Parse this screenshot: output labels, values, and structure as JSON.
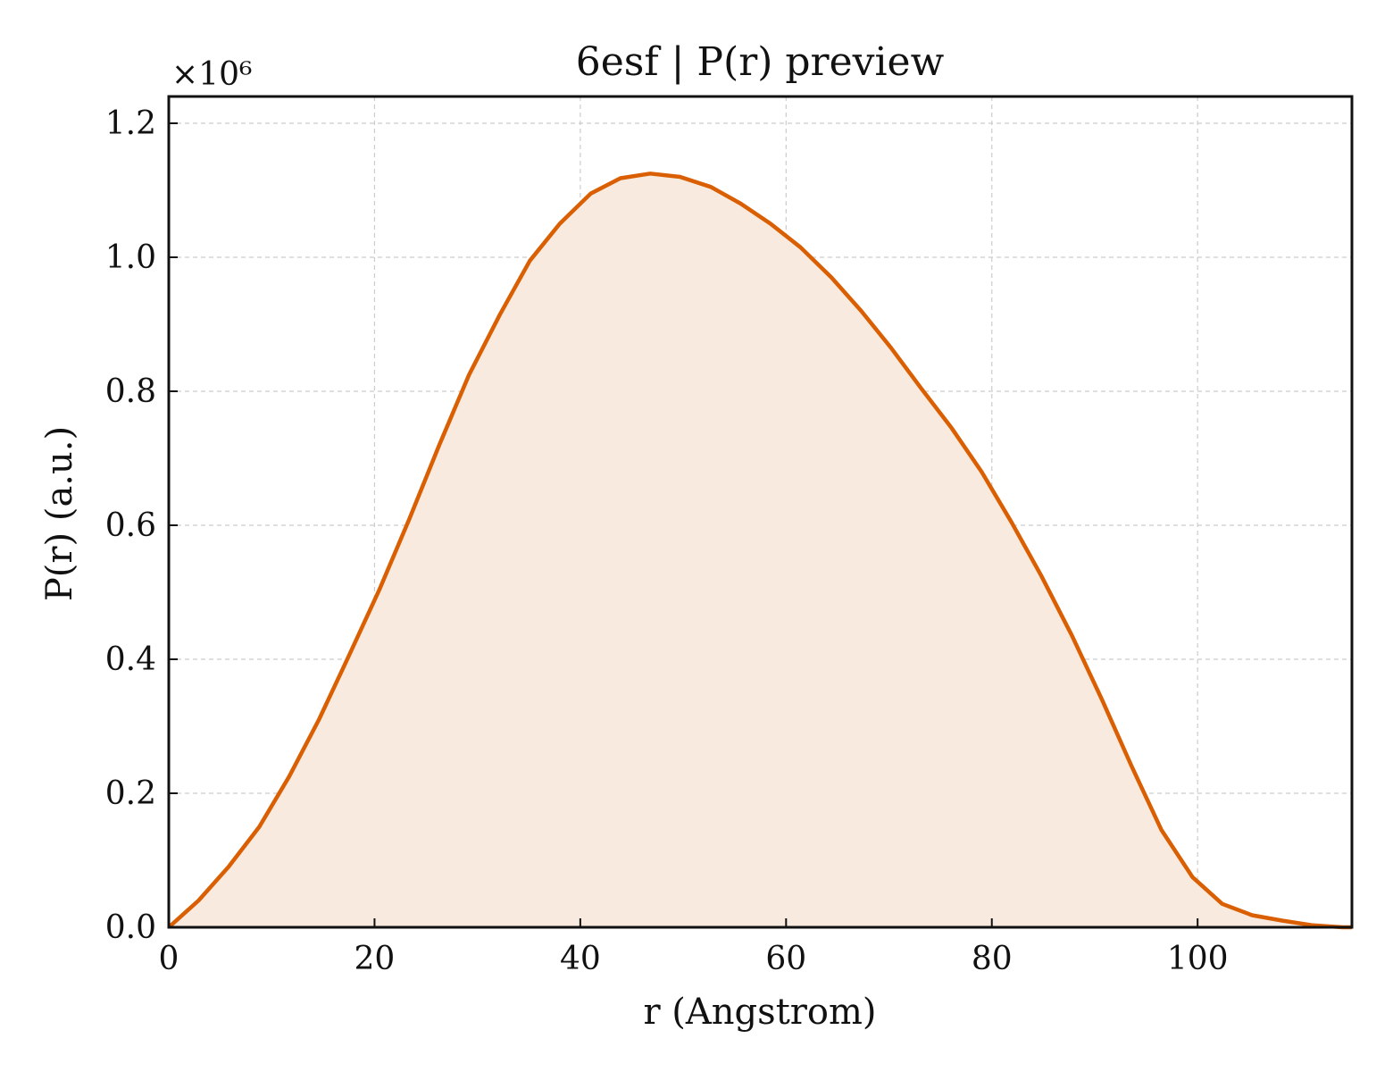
{
  "chart_data": {
    "type": "area",
    "title": "6esf | P(r) preview",
    "xlabel": "r (Angstrom)",
    "ylabel": "P(r) (a.u.)",
    "y_offset_text": "×10⁶",
    "xlim": [
      0,
      115
    ],
    "ylim": [
      0,
      1.24
    ],
    "x_ticks": [
      0,
      20,
      40,
      60,
      80,
      100
    ],
    "x_tick_labels": [
      "0",
      "20",
      "40",
      "60",
      "80",
      "100"
    ],
    "y_ticks": [
      0.0,
      0.2,
      0.4,
      0.6,
      0.8,
      1.0,
      1.2
    ],
    "y_tick_labels": [
      "0.0",
      "0.2",
      "0.4",
      "0.6",
      "0.8",
      "1.0",
      "1.2"
    ],
    "grid": true,
    "line_color": "#d95f02",
    "fill_color": "#f8eadf",
    "series": [
      {
        "x": [
          0,
          2.9,
          5.8,
          8.8,
          11.7,
          14.6,
          17.5,
          20.5,
          23.4,
          26.3,
          29.2,
          32.2,
          35.1,
          38.0,
          41.0,
          43.9,
          46.8,
          49.7,
          52.7,
          55.6,
          58.5,
          61.4,
          64.4,
          67.3,
          70.2,
          73.1,
          76.1,
          79.0,
          81.9,
          84.8,
          87.8,
          90.7,
          93.6,
          96.5,
          99.5,
          102.4,
          105.3,
          108.2,
          111.2,
          114.1,
          115
        ],
        "y": [
          0.0,
          0.04,
          0.09,
          0.15,
          0.225,
          0.31,
          0.405,
          0.505,
          0.61,
          0.72,
          0.825,
          0.915,
          0.995,
          1.05,
          1.095,
          1.118,
          1.125,
          1.12,
          1.105,
          1.08,
          1.05,
          1.015,
          0.97,
          0.92,
          0.865,
          0.805,
          0.745,
          0.68,
          0.605,
          0.525,
          0.435,
          0.34,
          0.24,
          0.145,
          0.075,
          0.035,
          0.018,
          0.01,
          0.003,
          0.0,
          0.0
        ]
      }
    ]
  }
}
